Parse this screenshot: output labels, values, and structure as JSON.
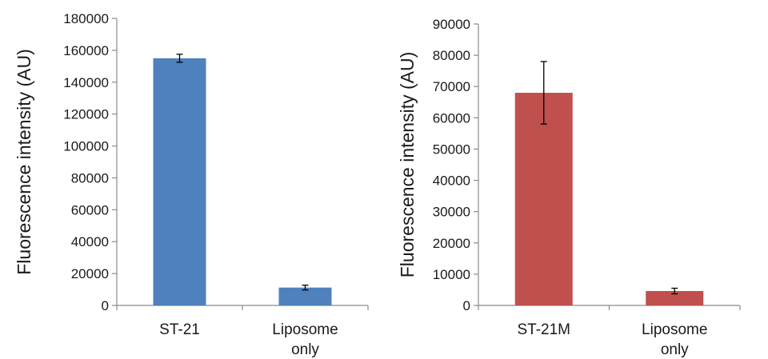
{
  "colors": {
    "chart1_bar": "#4f81bd",
    "chart2_bar": "#c0504d",
    "axis": "#8c8c8c"
  },
  "chart_data": [
    {
      "type": "bar",
      "ylabel": "Fluorescence intensity (AU)",
      "xlabel": "",
      "categories": [
        [
          "ST-21"
        ],
        [
          "Liposome",
          "only"
        ]
      ],
      "values": [
        155000,
        11200
      ],
      "error": [
        2500,
        1500
      ],
      "ylim": [
        0,
        180000
      ],
      "yticks": [
        0,
        20000,
        40000,
        60000,
        80000,
        100000,
        120000,
        140000,
        160000,
        180000
      ],
      "bar_color": "#4f81bd",
      "grid": false,
      "legend": "none"
    },
    {
      "type": "bar",
      "ylabel": "Fluorescence intensity (AU)",
      "xlabel": "",
      "categories": [
        [
          "ST-21M"
        ],
        [
          "Liposome",
          "only"
        ]
      ],
      "values": [
        68000,
        4600
      ],
      "error": [
        10000,
        900
      ],
      "ylim": [
        0,
        90000
      ],
      "yticks": [
        0,
        10000,
        20000,
        30000,
        40000,
        50000,
        60000,
        70000,
        80000,
        90000
      ],
      "bar_color": "#c0504d",
      "grid": false,
      "legend": "none"
    }
  ]
}
